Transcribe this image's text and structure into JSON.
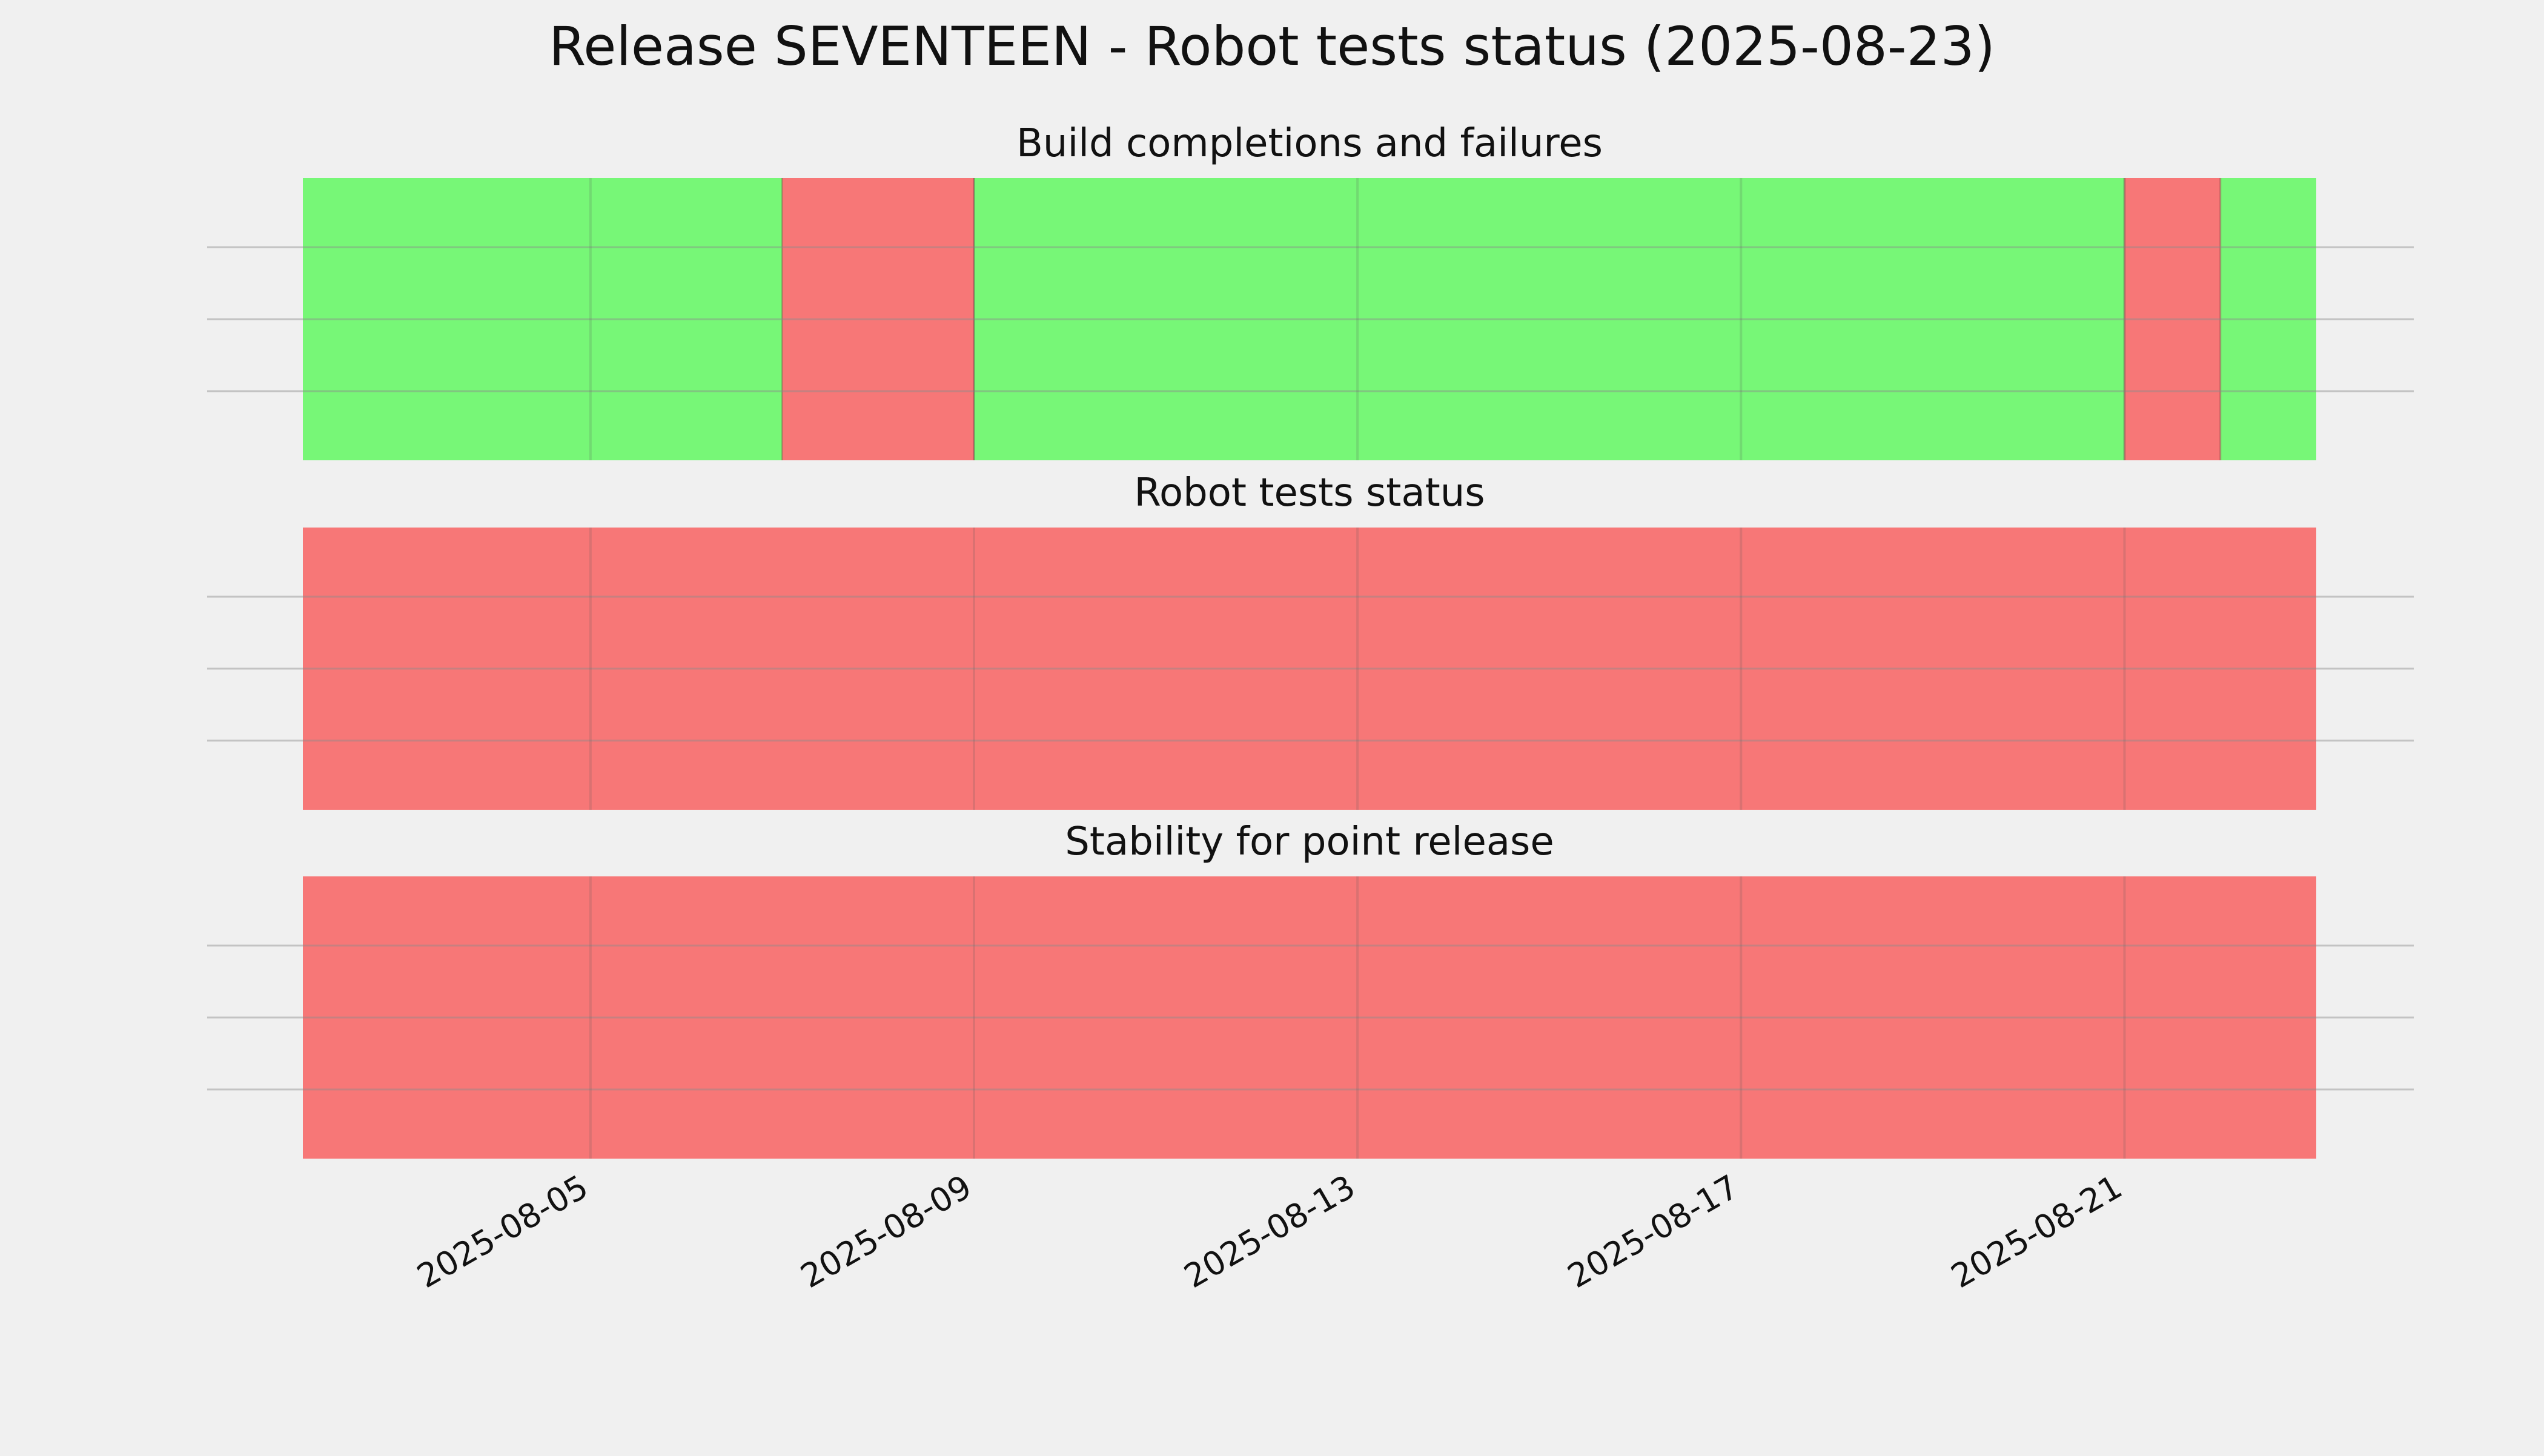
{
  "colors": {
    "background": "#f0f0f0",
    "pass": "#77f777",
    "fail": "#f77777",
    "grid_horizontal": "#c8c8c8"
  },
  "chart_data": {
    "type": "timeline",
    "title": "Release SEVENTEEN - Robot tests status (2025-08-23)",
    "x_start": "2025-08-02",
    "x_end": "2025-08-23",
    "x_ticks": [
      "2025-08-05",
      "2025-08-09",
      "2025-08-13",
      "2025-08-17",
      "2025-08-21"
    ],
    "grid": true,
    "panels": [
      {
        "title": "Build completions and failures",
        "segments": [
          {
            "start": "2025-08-02",
            "end": "2025-08-07",
            "status": "pass"
          },
          {
            "start": "2025-08-07",
            "end": "2025-08-09",
            "status": "fail"
          },
          {
            "start": "2025-08-09",
            "end": "2025-08-21",
            "status": "pass"
          },
          {
            "start": "2025-08-21",
            "end": "2025-08-22",
            "status": "fail"
          },
          {
            "start": "2025-08-22",
            "end": "2025-08-23",
            "status": "pass"
          }
        ]
      },
      {
        "title": "Robot tests status",
        "segments": [
          {
            "start": "2025-08-02",
            "end": "2025-08-23",
            "status": "fail"
          }
        ]
      },
      {
        "title": "Stability for point release",
        "segments": [
          {
            "start": "2025-08-02",
            "end": "2025-08-23",
            "status": "fail"
          }
        ]
      }
    ]
  }
}
